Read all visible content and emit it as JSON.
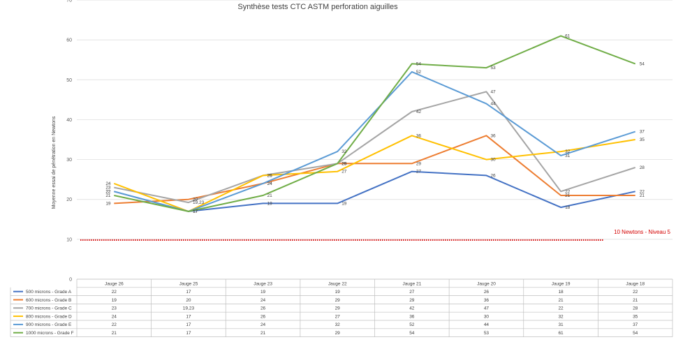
{
  "chart_data": {
    "type": "line",
    "title": "Synthèse tests CTC ASTM perforation aiguilles",
    "ylabel": "Moyenne essai de pénétration en Newtons",
    "ylim": [
      0,
      70
    ],
    "yticks": [
      0,
      10,
      20,
      30,
      40,
      50,
      60,
      70
    ],
    "grid": true,
    "categories": [
      "Jauge 26",
      "Jauge 25",
      "Jauge 23",
      "Jauge 22",
      "Jauge 21",
      "Jauge 20",
      "Jauge 19",
      "Jauge 18"
    ],
    "series": [
      {
        "name": "500 microns - Grade A",
        "color": "#4472c4",
        "values": [
          22,
          17,
          19,
          19,
          27,
          26,
          18,
          22
        ],
        "table_values": [
          "22",
          "17",
          "19",
          "19",
          "27",
          "26",
          "18",
          "22"
        ]
      },
      {
        "name": "600 microns - Grade B",
        "color": "#ed7d31",
        "values": [
          19,
          20,
          24,
          29,
          29,
          36,
          21,
          21
        ],
        "table_values": [
          "19",
          "20",
          "24",
          "29",
          "29",
          "36",
          "21",
          "21"
        ]
      },
      {
        "name": "700 microns - Grade C",
        "color": "#a5a5a5",
        "values": [
          23,
          19.23,
          26,
          29,
          42,
          47,
          22,
          28
        ],
        "table_values": [
          "23",
          "19,23",
          "26",
          "29",
          "42",
          "47",
          "22",
          "28"
        ]
      },
      {
        "name": "800 microns - Grade D",
        "color": "#ffc000",
        "values": [
          24,
          17,
          26,
          27,
          36,
          30,
          32,
          35
        ],
        "table_values": [
          "24",
          "17",
          "26",
          "27",
          "36",
          "30",
          "32",
          "35"
        ]
      },
      {
        "name": "900 microns - Grade E",
        "color": "#5b9bd5",
        "values": [
          22,
          17,
          24,
          32,
          52,
          44,
          31,
          37
        ],
        "table_values": [
          "22",
          "17",
          "24",
          "32",
          "52",
          "44",
          "31",
          "37"
        ]
      },
      {
        "name": "1000 microns - Grade F",
        "color": "#70ad47",
        "values": [
          21,
          17,
          21,
          29,
          54,
          53,
          61,
          54
        ],
        "table_values": [
          "21",
          "17",
          "21",
          "29",
          "54",
          "53",
          "61",
          "54"
        ]
      }
    ],
    "annotations": [
      {
        "text": "10 Newtons - Niveau 5",
        "y": 10,
        "color": "#d40000"
      }
    ],
    "data_table": true
  }
}
